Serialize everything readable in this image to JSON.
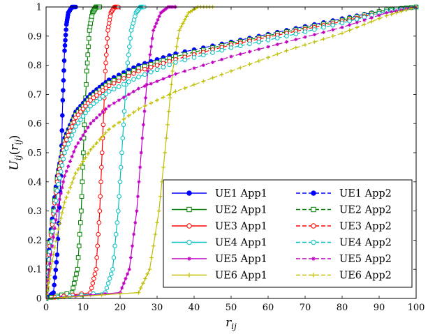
{
  "chart_data": {
    "type": "line",
    "title": "",
    "xlabel": "r_ij",
    "ylabel": "U_ij(r_ij)",
    "xlim": [
      0,
      100
    ],
    "ylim": [
      0,
      1
    ],
    "x_ticks": [
      "0",
      "10",
      "20",
      "30",
      "40",
      "50",
      "60",
      "70",
      "80",
      "90",
      "100"
    ],
    "y_ticks": [
      "0",
      "0.1",
      "0.2",
      "0.3",
      "0.4",
      "0.5",
      "0.6",
      "0.7",
      "0.8",
      "0.9",
      "1"
    ],
    "grid": false,
    "legend_position": "lower-right",
    "series": [
      {
        "name": "UE1 App1",
        "color": "#0000ff",
        "marker": "filled-circle",
        "dash": "solid",
        "x": [
          0,
          2,
          3,
          4,
          4.5,
          5,
          5.5,
          6,
          7,
          8
        ],
        "y": [
          0,
          0.02,
          0.15,
          0.42,
          0.68,
          0.85,
          0.94,
          0.98,
          1.0,
          1.0
        ]
      },
      {
        "name": "UE2 App1",
        "color": "#008000",
        "marker": "square",
        "dash": "solid",
        "x": [
          0,
          7,
          8.5,
          9.5,
          10.2,
          11,
          11.7,
          12.5,
          13.5,
          14.5
        ],
        "y": [
          0,
          0.02,
          0.1,
          0.3,
          0.55,
          0.78,
          0.92,
          0.98,
          1.0,
          1.0
        ]
      },
      {
        "name": "UE3 App1",
        "color": "#ff0000",
        "marker": "circle",
        "dash": "solid",
        "x": [
          0,
          12,
          13.5,
          14.5,
          15.3,
          16,
          16.7,
          17.5,
          18.5,
          19.5
        ],
        "y": [
          0,
          0.02,
          0.1,
          0.3,
          0.55,
          0.78,
          0.92,
          0.98,
          1.0,
          1.0
        ]
      },
      {
        "name": "UE4 App1",
        "color": "#00c0c0",
        "marker": "circle",
        "dash": "solid",
        "x": [
          0,
          16,
          18,
          19.5,
          20.7,
          21.8,
          23,
          24.3,
          25.5,
          26.5
        ],
        "y": [
          0,
          0.02,
          0.1,
          0.3,
          0.55,
          0.78,
          0.92,
          0.98,
          1.0,
          1.0
        ]
      },
      {
        "name": "UE5 App1",
        "color": "#c000c0",
        "marker": "star",
        "dash": "solid",
        "x": [
          0,
          20,
          22.5,
          24.5,
          26,
          27.5,
          29,
          31,
          33,
          35
        ],
        "y": [
          0,
          0.02,
          0.1,
          0.3,
          0.55,
          0.78,
          0.92,
          0.98,
          1.0,
          1.0
        ]
      },
      {
        "name": "UE6 App1",
        "color": "#bfbf00",
        "marker": "plus",
        "dash": "solid",
        "x": [
          0,
          25,
          28,
          30.5,
          32.5,
          34.2,
          36,
          38.5,
          41,
          45
        ],
        "y": [
          0,
          0.02,
          0.1,
          0.3,
          0.55,
          0.78,
          0.92,
          0.98,
          1.0,
          1.0
        ]
      },
      {
        "name": "UE1 App2",
        "color": "#0000ff",
        "marker": "filled-circle",
        "dash": "dashed",
        "x": [
          0,
          1,
          3,
          5,
          8,
          12,
          17,
          25,
          35,
          50,
          65,
          80,
          92,
          100
        ],
        "y": [
          0,
          0.2,
          0.42,
          0.55,
          0.64,
          0.7,
          0.75,
          0.8,
          0.84,
          0.88,
          0.92,
          0.96,
          0.99,
          1.0
        ]
      },
      {
        "name": "UE2 App2",
        "color": "#008000",
        "marker": "square",
        "dash": "dashed",
        "x": [
          0,
          1,
          3,
          5,
          8,
          12,
          17,
          25,
          35,
          50,
          65,
          80,
          92,
          100
        ],
        "y": [
          0,
          0.19,
          0.41,
          0.54,
          0.63,
          0.69,
          0.74,
          0.79,
          0.83,
          0.875,
          0.915,
          0.955,
          0.99,
          1.0
        ]
      },
      {
        "name": "UE3 App2",
        "color": "#ff0000",
        "marker": "circle",
        "dash": "dashed",
        "x": [
          0,
          1,
          3,
          5,
          8,
          12,
          17,
          25,
          35,
          50,
          65,
          80,
          92,
          100
        ],
        "y": [
          0,
          0.18,
          0.4,
          0.53,
          0.62,
          0.68,
          0.73,
          0.78,
          0.82,
          0.87,
          0.91,
          0.95,
          0.985,
          1.0
        ]
      },
      {
        "name": "UE4 App2",
        "color": "#00c0c0",
        "marker": "circle",
        "dash": "dashed",
        "x": [
          0,
          1,
          3,
          5,
          8,
          12,
          17,
          25,
          35,
          50,
          65,
          80,
          92,
          100
        ],
        "y": [
          0,
          0.16,
          0.37,
          0.5,
          0.59,
          0.66,
          0.71,
          0.76,
          0.81,
          0.86,
          0.9,
          0.945,
          0.985,
          1.0
        ]
      },
      {
        "name": "UE5 App2",
        "color": "#c000c0",
        "marker": "star",
        "dash": "dashed",
        "x": [
          0,
          1,
          3,
          5,
          8,
          12,
          17,
          25,
          35,
          50,
          65,
          80,
          92,
          100
        ],
        "y": [
          0,
          0.12,
          0.3,
          0.42,
          0.52,
          0.6,
          0.66,
          0.72,
          0.77,
          0.83,
          0.88,
          0.93,
          0.98,
          1.0
        ]
      },
      {
        "name": "UE6 App2",
        "color": "#bfbf00",
        "marker": "plus",
        "dash": "dashed",
        "x": [
          0,
          1,
          3,
          5,
          8,
          12,
          17,
          25,
          35,
          50,
          65,
          80,
          92,
          100
        ],
        "y": [
          0,
          0.08,
          0.22,
          0.33,
          0.43,
          0.51,
          0.58,
          0.65,
          0.71,
          0.78,
          0.85,
          0.91,
          0.97,
          1.0
        ]
      }
    ]
  }
}
